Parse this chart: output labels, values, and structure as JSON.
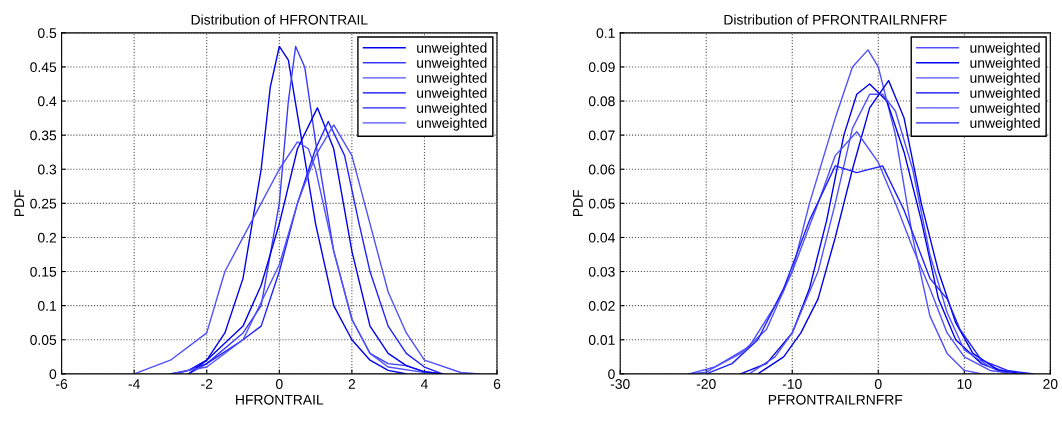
{
  "chart_data": [
    {
      "type": "line",
      "title": "Distribution of HFRONTRAIL",
      "xlabel": "HFRONTRAIL",
      "ylabel": "PDF",
      "xlim": [
        -6,
        6
      ],
      "xticks": [
        -6,
        -4,
        -2,
        0,
        2,
        4,
        6
      ],
      "ylim": [
        0,
        0.5
      ],
      "yticks": [
        0,
        0.05,
        0.1,
        0.15,
        0.2,
        0.25,
        0.3,
        0.35,
        0.4,
        0.45,
        0.5
      ],
      "grid": true,
      "legend": "top right",
      "line_style": "solid",
      "marker": "none",
      "series": [
        {
          "name": "unweighted",
          "color": "#0000ee",
          "x": [
            -3,
            -2.5,
            -2,
            -1.5,
            -1,
            -0.5,
            -0.25,
            0,
            0.25,
            0.5,
            1,
            1.5,
            2,
            2.5,
            3,
            3.5
          ],
          "values": [
            0,
            0.005,
            0.02,
            0.06,
            0.14,
            0.3,
            0.42,
            0.48,
            0.46,
            0.38,
            0.22,
            0.1,
            0.05,
            0.02,
            0.005,
            0
          ]
        },
        {
          "name": "unweighted",
          "color": "#3a3aff",
          "x": [
            -2.8,
            -2,
            -1,
            -0.5,
            0,
            0.25,
            0.45,
            0.7,
            1,
            1.5,
            2,
            2.5,
            3,
            3.5,
            4,
            4.5
          ],
          "values": [
            0,
            0.015,
            0.06,
            0.1,
            0.25,
            0.4,
            0.48,
            0.45,
            0.34,
            0.18,
            0.08,
            0.03,
            0.015,
            0.012,
            0.003,
            0
          ]
        },
        {
          "name": "unweighted",
          "color": "#5050ff",
          "x": [
            -4,
            -3,
            -2,
            -1.5,
            -1,
            -0.5,
            0,
            0.5,
            0.8,
            1,
            1.5,
            2,
            2.5,
            3,
            4
          ],
          "values": [
            0,
            0.02,
            0.06,
            0.15,
            0.2,
            0.25,
            0.3,
            0.34,
            0.33,
            0.3,
            0.18,
            0.08,
            0.03,
            0.01,
            0.002
          ]
        },
        {
          "name": "unweighted",
          "color": "#0000ee",
          "x": [
            -2.5,
            -2,
            -1,
            -0.5,
            0,
            0.5,
            1.05,
            1.5,
            2,
            2.5,
            3,
            3.5,
            4,
            4.5
          ],
          "values": [
            0,
            0.02,
            0.07,
            0.13,
            0.22,
            0.33,
            0.39,
            0.33,
            0.18,
            0.07,
            0.03,
            0.012,
            0.003,
            0
          ]
        },
        {
          "name": "unweighted",
          "color": "#2020ff",
          "x": [
            -2.5,
            -2,
            -1,
            -0.5,
            0,
            0.5,
            1,
            1.35,
            1.8,
            2.2,
            2.5,
            3,
            3.5,
            4,
            4.5
          ],
          "values": [
            0,
            0.015,
            0.05,
            0.07,
            0.15,
            0.25,
            0.33,
            0.37,
            0.32,
            0.22,
            0.15,
            0.07,
            0.03,
            0.01,
            0
          ]
        },
        {
          "name": "unweighted",
          "color": "#5050ff",
          "x": [
            -3,
            -2,
            -1,
            0,
            0.5,
            1,
            1.5,
            2,
            2.5,
            3,
            3.5,
            4,
            5,
            5.5
          ],
          "values": [
            0,
            0.01,
            0.05,
            0.16,
            0.25,
            0.32,
            0.365,
            0.32,
            0.22,
            0.12,
            0.06,
            0.02,
            0.002,
            0
          ]
        }
      ]
    },
    {
      "type": "line",
      "title": "Distribution of PFRONTRAILRNFRF",
      "xlabel": "PFRONTRAILRNFRF",
      "ylabel": "PDF",
      "xlim": [
        -30,
        20
      ],
      "xticks": [
        -30,
        -20,
        -10,
        0,
        10,
        20
      ],
      "ylim": [
        0,
        0.1
      ],
      "yticks": [
        0,
        0.01,
        0.02,
        0.03,
        0.04,
        0.05,
        0.06,
        0.07,
        0.08,
        0.09,
        0.1
      ],
      "grid": true,
      "legend": "top right",
      "line_style": "solid",
      "marker": "none",
      "series": [
        {
          "name": "unweighted",
          "color": "#5050ff",
          "x": [
            -22,
            -20,
            -15,
            -12,
            -10,
            -8,
            -5,
            -3,
            -1.2,
            0,
            2,
            4,
            6,
            8,
            10,
            12
          ],
          "values": [
            0,
            0.0005,
            0.008,
            0.02,
            0.03,
            0.05,
            0.075,
            0.09,
            0.095,
            0.09,
            0.07,
            0.04,
            0.017,
            0.006,
            0.001,
            0
          ]
        },
        {
          "name": "unweighted",
          "color": "#0000ee",
          "x": [
            -16,
            -13,
            -10,
            -8,
            -6,
            -4,
            -2.5,
            -1,
            1,
            3,
            5,
            7,
            9,
            12,
            15
          ],
          "values": [
            0,
            0.003,
            0.012,
            0.025,
            0.045,
            0.07,
            0.082,
            0.085,
            0.08,
            0.065,
            0.045,
            0.022,
            0.01,
            0.003,
            0
          ]
        },
        {
          "name": "unweighted",
          "color": "#5050ff",
          "x": [
            -15,
            -12,
            -10,
            -7,
            -5,
            -3,
            -1,
            0.5,
            2,
            4,
            6,
            8,
            10,
            13,
            16
          ],
          "values": [
            0,
            0.005,
            0.012,
            0.03,
            0.05,
            0.072,
            0.082,
            0.082,
            0.077,
            0.06,
            0.035,
            0.018,
            0.007,
            0.002,
            0
          ]
        },
        {
          "name": "unweighted",
          "color": "#0000ee",
          "x": [
            -14,
            -11,
            -9,
            -7,
            -5,
            -3,
            -1,
            1.2,
            3,
            5,
            7,
            9,
            11,
            14,
            17
          ],
          "values": [
            0,
            0.005,
            0.012,
            0.022,
            0.04,
            0.06,
            0.078,
            0.086,
            0.075,
            0.05,
            0.03,
            0.015,
            0.006,
            0.001,
            0
          ]
        },
        {
          "name": "unweighted",
          "color": "#5050ff",
          "x": [
            -22,
            -19,
            -16,
            -13,
            -10,
            -7,
            -5,
            -2.5,
            0,
            2,
            4,
            6,
            8,
            10,
            13,
            16
          ],
          "values": [
            0,
            0.002,
            0.006,
            0.013,
            0.03,
            0.05,
            0.064,
            0.071,
            0.062,
            0.05,
            0.037,
            0.025,
            0.012,
            0.005,
            0.001,
            0
          ]
        },
        {
          "name": "unweighted",
          "color": "#2020ff",
          "x": [
            -20,
            -17,
            -14,
            -11,
            -8,
            -5,
            -2.5,
            0.5,
            3,
            6,
            8,
            9.5,
            12,
            15,
            18
          ],
          "values": [
            0,
            0.003,
            0.01,
            0.025,
            0.045,
            0.061,
            0.059,
            0.061,
            0.048,
            0.028,
            0.022,
            0.013,
            0.004,
            0.001,
            0
          ]
        }
      ]
    }
  ]
}
